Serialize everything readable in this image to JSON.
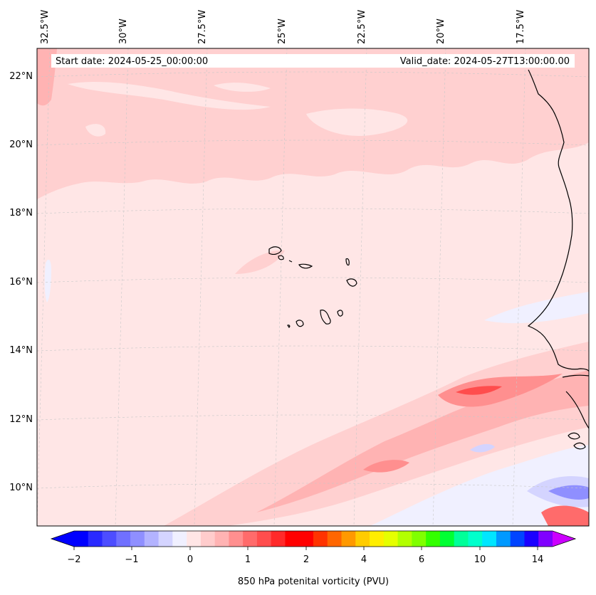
{
  "map": {
    "start_date": "Start date: 2024-05-25_00:00:00",
    "valid_date": "Valid_date: 2024-05-27T13:00:00.00",
    "lon_labels": [
      "32.5°W",
      "30°W",
      "27.5°W",
      "25°W",
      "22.5°W",
      "20°W",
      "17.5°W"
    ],
    "lat_labels": [
      "22°N",
      "20°N",
      "18°N",
      "16°N",
      "14°N",
      "12°N",
      "10°N"
    ],
    "background_color": "#ffe6e6",
    "coastline_color": "#000000"
  },
  "colorbar": {
    "label": "850 hPa potenital vorticity (PVU)",
    "ticks": [
      "−2",
      "−1",
      "0",
      "1",
      "2",
      "4",
      "6",
      "10",
      "14"
    ],
    "colors": [
      "#0000ff",
      "#2a2aff",
      "#4d4dff",
      "#7070ff",
      "#8f8fff",
      "#b3b3ff",
      "#d4d4ff",
      "#f0f0ff",
      "#ffe6e6",
      "#ffcccc",
      "#ffb3b3",
      "#ff8f8f",
      "#ff6b6b",
      "#ff4d4d",
      "#ff2a2a",
      "#ff0000",
      "#ff0000",
      "#ff3300",
      "#ff6600",
      "#ff9900",
      "#ffcc00",
      "#ffee00",
      "#e6ff00",
      "#b3ff00",
      "#80ff00",
      "#33ff00",
      "#00ff33",
      "#00ff99",
      "#00ffcc",
      "#00e6ff",
      "#0099ff",
      "#0044ff",
      "#1a00ff",
      "#8000ff"
    ],
    "under_color": "#0000ff",
    "over_color": "#cc00ff"
  }
}
